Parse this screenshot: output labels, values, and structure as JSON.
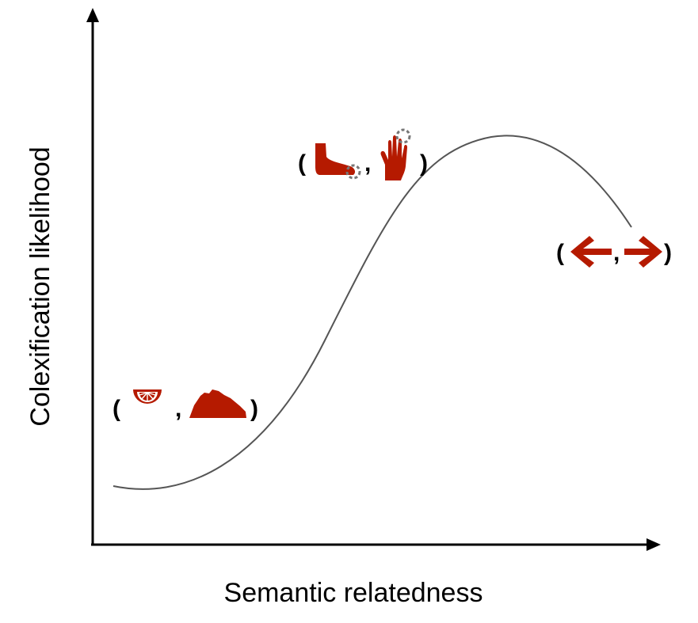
{
  "axes": {
    "x_label": "Semantic relatedness",
    "y_label": "Colexification likelihood"
  },
  "curve": {
    "shape": "rises from a low trough, peaks at high relatedness, then declines slightly",
    "color": "#555555"
  },
  "examples": [
    {
      "icons": [
        "orange-slice-icon",
        "mountain-icon"
      ],
      "open": "(",
      "separator": ",",
      "close": ")"
    },
    {
      "icons": [
        "foot-toe-icon",
        "hand-finger-icon"
      ],
      "open": "(",
      "separator": ",",
      "close": ")"
    },
    {
      "icons": [
        "arrow-left-icon",
        "arrow-right-icon"
      ],
      "open": "(",
      "separator": ",",
      "close": ")"
    }
  ],
  "colors": {
    "icon": "#b51a00",
    "axis": "#000000",
    "highlight_dash": "#777777"
  }
}
